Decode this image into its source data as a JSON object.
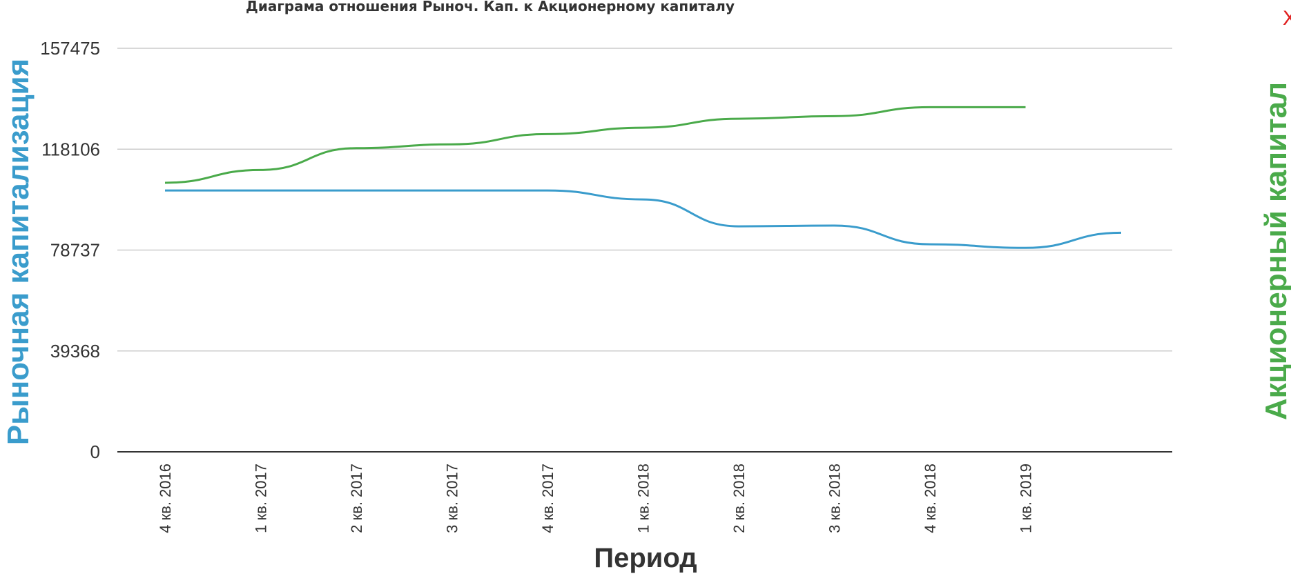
{
  "colors": {
    "series_market_cap": "#3a9ccc",
    "series_equity": "#4aaa4a",
    "grid": "#cccccc",
    "axis": "#333333",
    "close": "#e02020"
  },
  "close_button": {
    "label": "X",
    "icon": "close-icon"
  },
  "chart_data": {
    "type": "line",
    "title": "Диаграма отношения Рыноч. Кап. к Акционерному капиталу",
    "xlabel": "Период",
    "ylabel": "Рыночная капитализация",
    "ylabel_right": "Акционерный капитал",
    "ylim": [
      0,
      157475
    ],
    "y_ticks": [
      "0",
      "39368",
      "78737",
      "118106",
      "157475"
    ],
    "y_tick_values": [
      0,
      39368,
      78737,
      118106,
      157475
    ],
    "grid": true,
    "categories": [
      "4 кв. 2016",
      "1 кв. 2017",
      "2 кв. 2017",
      "3 кв. 2017",
      "4 кв. 2017",
      "1 кв. 2018",
      "2 кв. 2018",
      "3 кв. 2018",
      "4 кв. 2018",
      "1 кв. 2019",
      ""
    ],
    "series": [
      {
        "key": "market_cap",
        "axis": "left",
        "values": [
          102000,
          102000,
          102000,
          102000,
          102000,
          98500,
          88000,
          88300,
          81000,
          79600,
          85500
        ]
      },
      {
        "key": "equity",
        "axis": "right",
        "values": [
          105000,
          110000,
          118500,
          120000,
          124000,
          126500,
          130000,
          131000,
          134500,
          134500,
          null
        ]
      }
    ]
  }
}
